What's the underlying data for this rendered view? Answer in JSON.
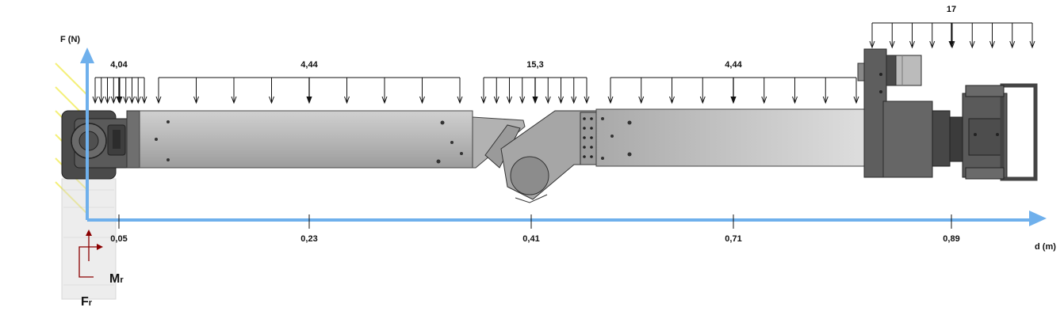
{
  "axes": {
    "y_label": "F (N)",
    "x_label": "d (m)",
    "color": "#6fb0ec"
  },
  "x_ticks": [
    "0,05",
    "0,23",
    "0,41",
    "0,71",
    "0,89"
  ],
  "loads": [
    {
      "id": "load-1",
      "value": "4,04"
    },
    {
      "id": "load-2",
      "value": "4,44"
    },
    {
      "id": "load-3",
      "value": "15,3"
    },
    {
      "id": "load-4",
      "value": "4,44"
    },
    {
      "id": "load-5",
      "value": "17"
    }
  ],
  "reactions": {
    "moment_main": "M",
    "moment_sub": "r",
    "force_main": "F",
    "force_sub": "r",
    "color": "#8b0000"
  },
  "colors": {
    "hatch": "#f4f07a",
    "arm": "#b8b8b8",
    "arm_dark": "#6f6f6f",
    "frame": "#3c3c3c"
  }
}
